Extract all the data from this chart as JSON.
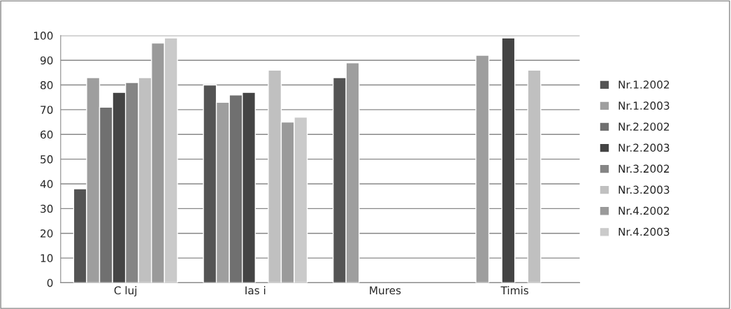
{
  "chart_data": {
    "type": "bar",
    "categories": [
      "C luj",
      "Ias i",
      "Mures",
      "Timis"
    ],
    "ylim": [
      0,
      100
    ],
    "yticks": [
      0,
      10,
      20,
      30,
      40,
      50,
      60,
      70,
      80,
      90,
      100
    ],
    "grid": "y",
    "legend": "right",
    "series": [
      {
        "name": "Nr.1.2002",
        "color": "#545454",
        "values": [
          38,
          80,
          83,
          null
        ]
      },
      {
        "name": "Nr.1.2003",
        "color": "#9e9e9e",
        "values": [
          83,
          73,
          89,
          92
        ]
      },
      {
        "name": "Nr.2.2002",
        "color": "#707070",
        "values": [
          71,
          76,
          null,
          null
        ]
      },
      {
        "name": "Nr.2.2003",
        "color": "#444444",
        "values": [
          77,
          77,
          null,
          99
        ]
      },
      {
        "name": "Nr.3.2002",
        "color": "#858585",
        "values": [
          81,
          null,
          null,
          null
        ]
      },
      {
        "name": "Nr.3.2003",
        "color": "#c0c0c0",
        "values": [
          83,
          86,
          null,
          86
        ]
      },
      {
        "name": "Nr.4.2002",
        "color": "#9a9a9a",
        "values": [
          97,
          65,
          null,
          null
        ]
      },
      {
        "name": "Nr.4.2003",
        "color": "#cacaca",
        "values": [
          99,
          67,
          null,
          null
        ]
      }
    ]
  }
}
